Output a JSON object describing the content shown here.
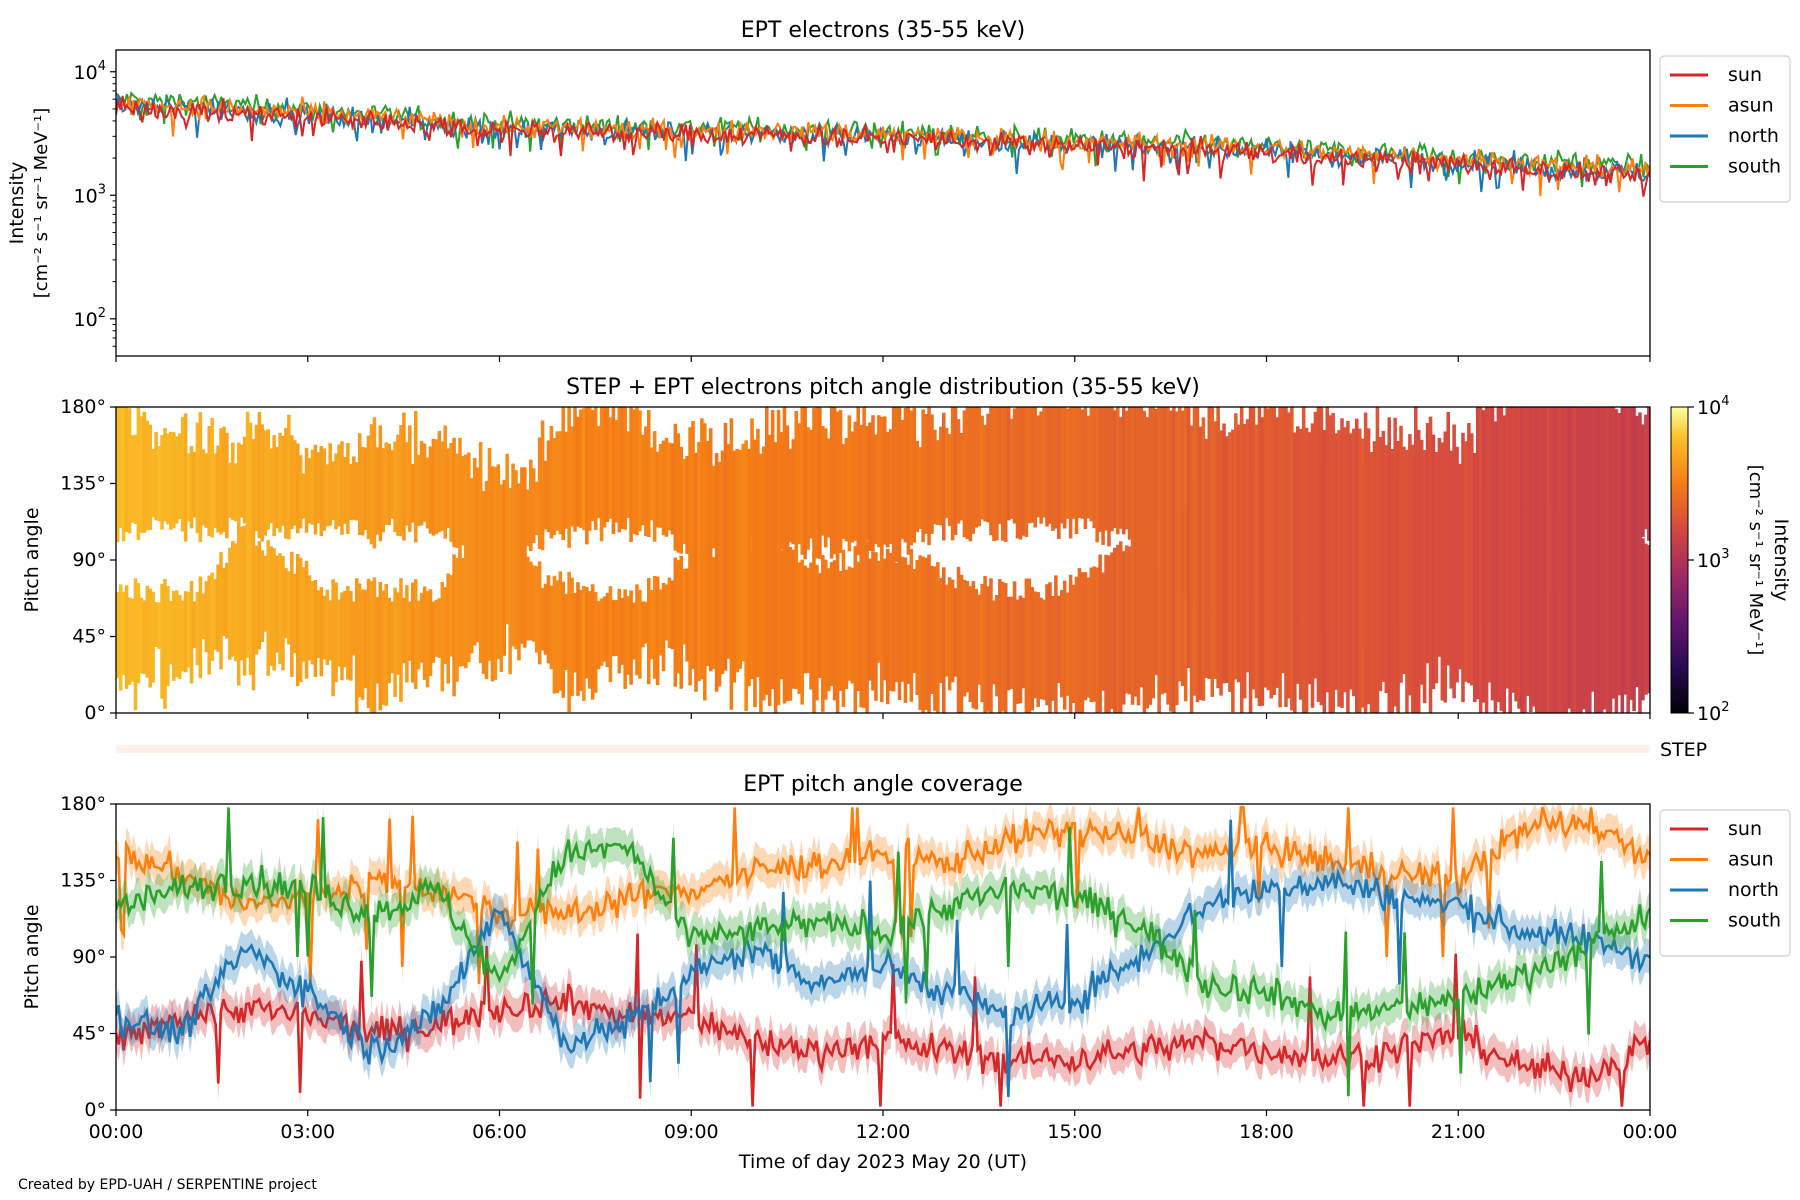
{
  "footer": {
    "credit": "Created by EPD-UAH / SERPENTINE project"
  },
  "chart_data": [
    {
      "type": "line",
      "title": "EPT electrons (35-55 keV)",
      "ylabel": "Intensity",
      "ylabel_units": "[cm⁻² s⁻¹ sr⁻¹ MeV⁻¹]",
      "yscale": "log",
      "ylim": [
        50,
        15000
      ],
      "yticks": [
        {
          "value": 100,
          "label": "10",
          "exp": "2"
        },
        {
          "value": 1000,
          "label": "10",
          "exp": "3"
        },
        {
          "value": 10000,
          "label": "10",
          "exp": "4"
        }
      ],
      "xlim": [
        "00:00",
        "24:00"
      ],
      "legend_position": "outside-right",
      "x_hours": [
        0,
        1,
        2,
        3,
        4,
        5,
        6,
        7,
        8,
        9,
        10,
        11,
        12,
        13,
        14,
        15,
        16,
        17,
        18,
        19,
        20,
        21,
        22,
        23,
        24
      ],
      "series": [
        {
          "name": "sun",
          "color": "#d62728",
          "values": [
            5000,
            4900,
            4600,
            4300,
            4000,
            3700,
            3400,
            3300,
            3200,
            3100,
            3100,
            3000,
            2900,
            2800,
            2600,
            2500,
            2400,
            2300,
            2200,
            2000,
            1900,
            1800,
            1650,
            1500,
            1400
          ]
        },
        {
          "name": "asun",
          "color": "#ff7f0e",
          "values": [
            5500,
            5300,
            4900,
            4600,
            4300,
            3900,
            3600,
            3500,
            3400,
            3300,
            3300,
            3200,
            3100,
            3000,
            2800,
            2700,
            2600,
            2500,
            2400,
            2200,
            2100,
            2000,
            1800,
            1700,
            1600
          ]
        },
        {
          "name": "north",
          "color": "#1f77b4",
          "values": [
            5200,
            5100,
            4800,
            4500,
            4100,
            3800,
            3500,
            3400,
            3300,
            3200,
            3200,
            3100,
            3000,
            2900,
            2700,
            2600,
            2500,
            2400,
            2300,
            2100,
            2000,
            1900,
            1700,
            1600,
            1500
          ]
        },
        {
          "name": "south",
          "color": "#2ca02c",
          "values": [
            6000,
            5800,
            5300,
            4900,
            4500,
            4100,
            3800,
            3700,
            3600,
            3500,
            3500,
            3400,
            3300,
            3100,
            2900,
            2800,
            2700,
            2600,
            2500,
            2300,
            2200,
            2100,
            1900,
            1800,
            1700
          ]
        }
      ]
    },
    {
      "type": "heatmap",
      "title": "STEP + EPT electrons pitch angle distribution (35-55 keV)",
      "ylabel": "Pitch angle",
      "yticks": [
        "0°",
        "45°",
        "90°",
        "135°",
        "180°"
      ],
      "ylim": [
        0,
        180
      ],
      "colormap": "inferno",
      "colorbar": {
        "label": "Intensity",
        "units": "[cm⁻² s⁻¹ sr⁻¹ MeV⁻¹]",
        "scale": "log",
        "range": [
          100,
          10000
        ],
        "ticks": [
          {
            "value": 100,
            "label": "10",
            "exp": "2"
          },
          {
            "value": 1000,
            "label": "10",
            "exp": "3"
          },
          {
            "value": 10000,
            "label": "10",
            "exp": "4"
          }
        ]
      },
      "intensity_by_hour": [
        5800,
        5500,
        5100,
        4700,
        4300,
        3900,
        3600,
        3400,
        3300,
        3200,
        3100,
        3000,
        2900,
        2700,
        2500,
        2400,
        2300,
        2200,
        2000,
        1900,
        1800,
        1700,
        1500,
        1400,
        1300
      ]
    },
    {
      "type": "bar",
      "label": "STEP",
      "values": []
    },
    {
      "type": "line",
      "title": "EPT pitch angle coverage",
      "ylabel": "Pitch angle",
      "xlabel": "Time of day 2023 May 20 (UT)",
      "yticks": [
        "0°",
        "45°",
        "90°",
        "135°",
        "180°"
      ],
      "ylim": [
        0,
        180
      ],
      "xticks": [
        "00:00",
        "03:00",
        "06:00",
        "09:00",
        "12:00",
        "15:00",
        "18:00",
        "21:00",
        "00:00"
      ],
      "legend_position": "outside-right",
      "x_hours": [
        0,
        1,
        2,
        3,
        4,
        5,
        6,
        7,
        8,
        9,
        10,
        11,
        12,
        13,
        14,
        15,
        16,
        17,
        18,
        19,
        20,
        21,
        22,
        23,
        24
      ],
      "series": [
        {
          "name": "sun",
          "color": "#d62728",
          "values": [
            40,
            55,
            60,
            55,
            45,
            50,
            60,
            65,
            55,
            55,
            40,
            35,
            40,
            35,
            30,
            30,
            35,
            40,
            35,
            30,
            35,
            45,
            25,
            20,
            40
          ]
        },
        {
          "name": "asun",
          "color": "#ff7f0e",
          "values": [
            150,
            140,
            120,
            125,
            135,
            130,
            115,
            115,
            125,
            130,
            140,
            145,
            150,
            145,
            160,
            165,
            160,
            150,
            155,
            145,
            140,
            135,
            165,
            170,
            150
          ]
        },
        {
          "name": "north",
          "color": "#1f77b4",
          "values": [
            55,
            45,
            95,
            70,
            35,
            55,
            120,
            40,
            50,
            80,
            95,
            75,
            85,
            70,
            55,
            65,
            90,
            120,
            130,
            135,
            125,
            120,
            105,
            100,
            90
          ]
        },
        {
          "name": "south",
          "color": "#2ca02c",
          "values": [
            120,
            130,
            135,
            130,
            115,
            130,
            75,
            150,
            155,
            100,
            105,
            110,
            105,
            120,
            130,
            125,
            110,
            75,
            70,
            55,
            60,
            65,
            80,
            95,
            115
          ]
        }
      ]
    }
  ]
}
